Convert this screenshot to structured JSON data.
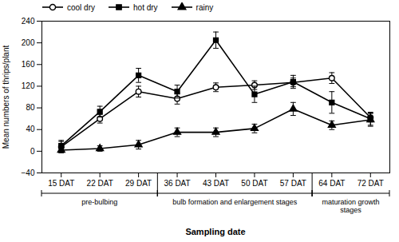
{
  "chart_data": {
    "type": "line",
    "xlabel": "Sampling date",
    "ylabel": "Mean numbers of thrips/plant",
    "categories": [
      "15 DAT",
      "22 DAT",
      "29 DAT",
      "36 DAT",
      "43 DAT",
      "50 DAT",
      "57 DAT",
      "64 DAT",
      "72 DAT"
    ],
    "series": [
      {
        "name": "cool dry",
        "color": "#000000",
        "marker": "open_circle",
        "values": [
          8,
          60,
          110,
          97,
          118,
          122,
          127,
          135,
          62
        ],
        "errors": [
          10,
          8,
          10,
          10,
          8,
          8,
          8,
          10,
          8
        ]
      },
      {
        "name": "hot dry",
        "color": "#000000",
        "marker": "square",
        "values": [
          10,
          73,
          140,
          110,
          205,
          105,
          128,
          90,
          60
        ],
        "errors": [
          10,
          10,
          13,
          12,
          15,
          15,
          12,
          20,
          12
        ]
      },
      {
        "name": "rainy",
        "color": "#000000",
        "marker": "triangle",
        "values": [
          2,
          5,
          12,
          35,
          35,
          42,
          78,
          48,
          58
        ],
        "errors": [
          5,
          5,
          8,
          8,
          8,
          8,
          12,
          8,
          12
        ]
      }
    ],
    "ylim": [
      -40,
      240
    ],
    "yticks": [
      -40,
      0,
      40,
      80,
      120,
      160,
      200,
      240
    ],
    "legend": "upper left",
    "annotations": [
      {
        "text": "pre-bulbing",
        "from": "15 DAT",
        "to": "29 DAT"
      },
      {
        "text": "bulb formation and enlargement stages",
        "from": "36 DAT",
        "to": "57 DAT"
      },
      {
        "text": "maturation growth\nstages",
        "from": "64 DAT",
        "to": "72 DAT"
      }
    ]
  }
}
